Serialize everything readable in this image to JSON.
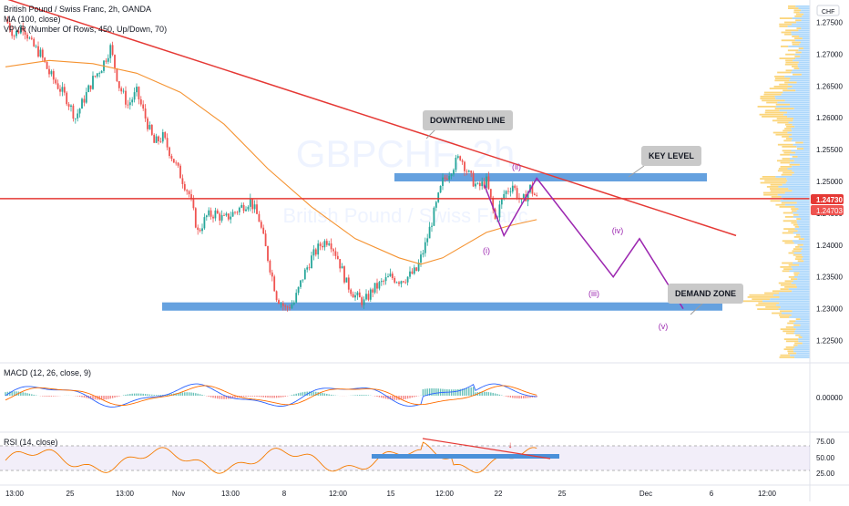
{
  "chart": {
    "symbol_title": "British Pound / Swiss Franc, 2h, OANDA",
    "indicator_ma": "MA (100, close)",
    "indicator_vpvr": "VPVR (Number Of Rows, 450, Up/Down, 70)",
    "watermark_symbol": "GBPCHF, 2h",
    "watermark_name": "British Pound / Swiss Franc",
    "currency_label": "CHF"
  },
  "annotations": {
    "downtrend_line": "DOWNTREND LINE",
    "key_level": "KEY LEVEL",
    "demand_zone": "DEMAND ZONE",
    "wave_i": "(i)",
    "wave_ii": "(ii)",
    "wave_iii": "(iii)",
    "wave_iv": "(iv)",
    "wave_v": "(v)"
  },
  "price_axis": {
    "ticks": [
      "1.27500",
      "1.27000",
      "1.26500",
      "1.26000",
      "1.25500",
      "1.25000",
      "1.24500",
      "1.24000",
      "1.23500",
      "1.23000",
      "1.22500"
    ],
    "current_price": "1.24730",
    "secondary_price": "1.24703"
  },
  "macd": {
    "label": "MACD (12, 26, close, 9)",
    "tick": "0.00000"
  },
  "rsi": {
    "label": "RSI (14, close)",
    "ticks": [
      "75.00",
      "50.00",
      "25.00"
    ]
  },
  "time_axis": {
    "labels": [
      "13:00",
      "25",
      "13:00",
      "Nov",
      "13:00",
      "8",
      "12:00",
      "15",
      "12:00",
      "22",
      "25",
      "Dec",
      "6",
      "12:00"
    ]
  },
  "colors": {
    "up_candle": "#26a69a",
    "down_candle": "#ef5350",
    "trendline": "#e53935",
    "zone": "#4a90d9",
    "ma": "#f59331",
    "projection": "#9c27b0",
    "price_label": "#e53935"
  },
  "chart_data": {
    "type": "candlestick",
    "symbol": "GBPCHF",
    "interval": "2h",
    "ylim": [
      1.2215,
      1.2785
    ],
    "close_path": [
      [
        0,
        1.2755
      ],
      [
        4,
        1.273
      ],
      [
        8,
        1.2745
      ],
      [
        12,
        1.2715
      ],
      [
        16,
        1.27
      ],
      [
        20,
        1.267
      ],
      [
        24,
        1.265
      ],
      [
        28,
        1.263
      ],
      [
        32,
        1.26
      ],
      [
        36,
        1.263
      ],
      [
        40,
        1.266
      ],
      [
        44,
        1.268
      ],
      [
        48,
        1.271
      ],
      [
        52,
        1.265
      ],
      [
        56,
        1.262
      ],
      [
        60,
        1.264
      ],
      [
        64,
        1.26
      ],
      [
        68,
        1.256
      ],
      [
        72,
        1.257
      ],
      [
        76,
        1.254
      ],
      [
        80,
        1.251
      ],
      [
        84,
        1.248
      ],
      [
        88,
        1.242
      ],
      [
        92,
        1.2445
      ],
      [
        96,
        1.245
      ],
      [
        100,
        1.244
      ],
      [
        104,
        1.245
      ],
      [
        108,
        1.246
      ],
      [
        112,
        1.247
      ],
      [
        116,
        1.244
      ],
      [
        120,
        1.238
      ],
      [
        124,
        1.232
      ],
      [
        128,
        1.23
      ],
      [
        132,
        1.231
      ],
      [
        136,
        1.235
      ],
      [
        140,
        1.238
      ],
      [
        144,
        1.24
      ],
      [
        148,
        1.241
      ],
      [
        152,
        1.238
      ],
      [
        156,
        1.234
      ],
      [
        160,
        1.232
      ],
      [
        164,
        1.231
      ],
      [
        168,
        1.233
      ],
      [
        172,
        1.234
      ],
      [
        176,
        1.235
      ],
      [
        180,
        1.2345
      ],
      [
        184,
        1.235
      ],
      [
        188,
        1.236
      ],
      [
        192,
        1.24
      ],
      [
        196,
        1.245
      ],
      [
        200,
        1.25
      ],
      [
        204,
        1.252
      ],
      [
        208,
        1.254
      ],
      [
        212,
        1.251
      ],
      [
        216,
        1.249
      ],
      [
        220,
        1.25
      ],
      [
        224,
        1.244
      ],
      [
        228,
        1.248
      ],
      [
        232,
        1.2495
      ],
      [
        236,
        1.2465
      ],
      [
        240,
        1.249
      ],
      [
        243,
        1.2473
      ]
    ],
    "ma_path": [
      [
        0,
        1.268
      ],
      [
        20,
        1.269
      ],
      [
        40,
        1.2685
      ],
      [
        60,
        1.267
      ],
      [
        80,
        1.264
      ],
      [
        100,
        1.259
      ],
      [
        120,
        1.252
      ],
      [
        140,
        1.246
      ],
      [
        160,
        1.241
      ],
      [
        180,
        1.238
      ],
      [
        190,
        1.237
      ],
      [
        200,
        1.238
      ],
      [
        210,
        1.24
      ],
      [
        220,
        1.242
      ],
      [
        230,
        1.243
      ],
      [
        243,
        1.244
      ]
    ],
    "key_level_zone": [
      1.25,
      1.2513
    ],
    "demand_zone": [
      1.2297,
      1.231
    ],
    "horizontal_level": 1.2473,
    "downtrend_line": [
      [
        0,
        1.279
      ],
      [
        430,
        1.2415
      ]
    ],
    "elliott_projection": [
      {
        "label": "(i)",
        "x": 228,
        "y": 1.2415
      },
      {
        "label": "(ii)",
        "x": 243,
        "y": 1.2505
      },
      {
        "label": "(iii)",
        "x": 278,
        "y": 1.235
      },
      {
        "label": "(iv)",
        "x": 290,
        "y": 1.241
      },
      {
        "label": "(v)",
        "x": 310,
        "y": 1.23
      }
    ],
    "macd": {
      "hist_bins": 243,
      "zero": 0.0
    },
    "rsi": {
      "ylim": [
        15,
        85
      ],
      "band": [
        30,
        70
      ]
    }
  }
}
